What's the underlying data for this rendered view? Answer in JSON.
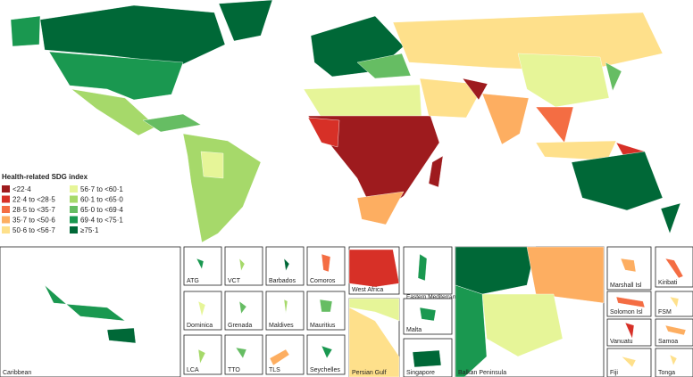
{
  "legend": {
    "title": "Health-related SDG index",
    "items": [
      {
        "label": "<22·4",
        "color": "#9e1b1e"
      },
      {
        "label": "22·4 to <28·5",
        "color": "#d73027"
      },
      {
        "label": "28·5 to <35·7",
        "color": "#f46d43"
      },
      {
        "label": "35·7 to <50·6",
        "color": "#fdae61"
      },
      {
        "label": "50·6 to <56·7",
        "color": "#fee08b"
      },
      {
        "label": "56·7 to <60·1",
        "color": "#e6f598"
      },
      {
        "label": "60·1 to <65·0",
        "color": "#a6d96a"
      },
      {
        "label": "65·0 to <69·4",
        "color": "#66bd63"
      },
      {
        "label": "69·4 to <75·1",
        "color": "#1a9850"
      },
      {
        "label": "≥75·1",
        "color": "#006837"
      }
    ]
  },
  "insets": [
    "Caribbean",
    "ATG",
    "VCT",
    "Barbados",
    "Comoros",
    "Dominica",
    "Grenada",
    "Maldives",
    "Mauritius",
    "LCA",
    "TTO",
    "TLS",
    "Seychelles",
    "West Africa",
    "Eastern Mediterranean",
    "Persian Gulf",
    "Malta",
    "Singapore",
    "Balkan Peninsula",
    "Marshall Isl",
    "Kiribati",
    "Solomon Isl",
    "FSM",
    "Vanuatu",
    "Samoa",
    "Fiji",
    "Tonga"
  ]
}
